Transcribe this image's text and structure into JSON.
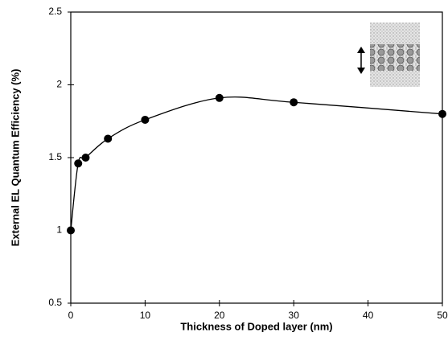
{
  "chart_data": {
    "type": "line",
    "xlabel": "Thickness of Doped layer (nm)",
    "ylabel": "External EL Quantum Efficiency (%)",
    "x": [
      0,
      1,
      2,
      5,
      10,
      20,
      30,
      50
    ],
    "values": [
      1,
      1.46,
      1.5,
      1.63,
      1.76,
      1.91,
      1.88,
      1.8
    ],
    "color": "#000000",
    "xlim": [
      0,
      50
    ],
    "xticks": [
      0,
      10,
      20,
      30,
      40,
      50
    ],
    "ylim": [
      0.5,
      2.5
    ],
    "yticks": [
      0.5,
      1,
      1.5,
      2,
      2.5
    ],
    "smooth": true,
    "markers": true
  }
}
